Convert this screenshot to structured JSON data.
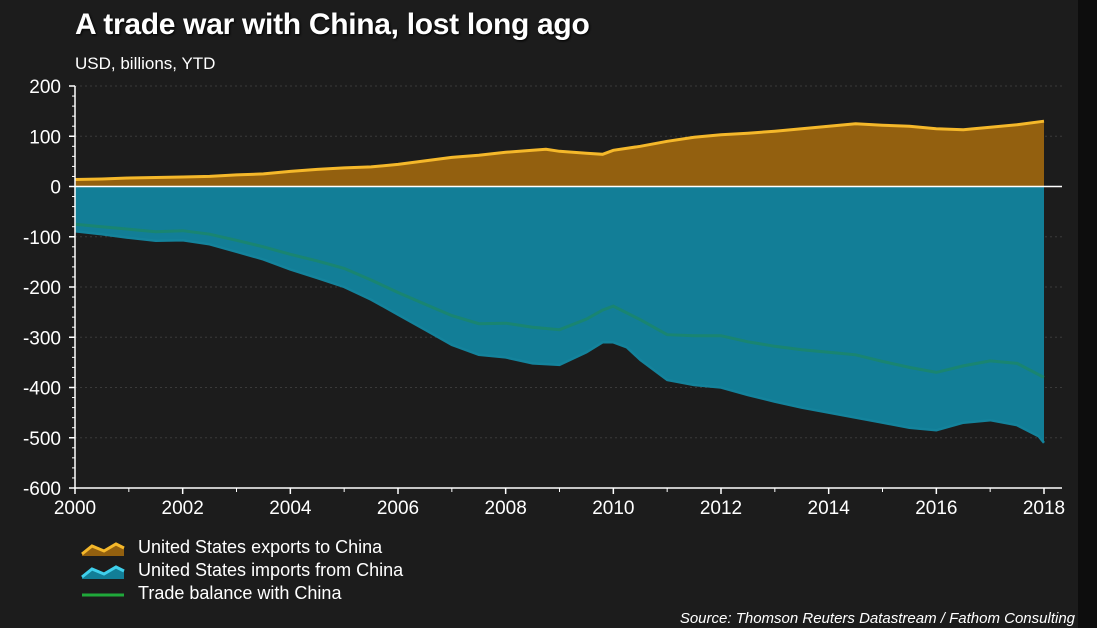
{
  "header": {
    "title": "A trade war with China, lost long ago",
    "subtitle": "USD, billions, YTD"
  },
  "source": "Source: Thomson Reuters Datastream / Fathom Consulting",
  "colors": {
    "background": "#1c1c1c",
    "exports_fill": "#93600f",
    "exports_line": "#f5b82a",
    "imports_fill": "#127e97",
    "imports_line": "#14839c",
    "balance_line": "#1f8a52",
    "axis": "#ffffff"
  },
  "chart_data": {
    "type": "area",
    "title": "A trade war with China, lost long ago",
    "subtitle": "USD, billions, YTD",
    "xlabel": "",
    "ylabel": "",
    "xlim": [
      2000,
      2018.1
    ],
    "ylim": [
      -600,
      200
    ],
    "grid": true,
    "legend_position": "bottom-left",
    "x_ticks": [
      2000,
      2002,
      2004,
      2006,
      2008,
      2010,
      2012,
      2014,
      2016,
      2018
    ],
    "y_ticks": [
      200,
      100,
      0,
      -100,
      -200,
      -300,
      -400,
      -500,
      -600
    ],
    "x_tick_labels": [
      "2000",
      "2002",
      "2004",
      "2006",
      "2008",
      "2010",
      "2012",
      "2014",
      "2016",
      "2018"
    ],
    "y_tick_labels": [
      "200",
      "100",
      "0",
      "-100",
      "-200",
      "-300",
      "-400",
      "-500",
      "-600"
    ],
    "series": [
      {
        "name": "United States exports to China",
        "x": [
          2000,
          2000.5,
          2001,
          2001.5,
          2002,
          2002.5,
          2003,
          2003.5,
          2004,
          2004.5,
          2005,
          2005.5,
          2006,
          2006.5,
          2007,
          2007.5,
          2008,
          2008.5,
          2008.75,
          2009,
          2009.5,
          2009.8,
          2010,
          2010.5,
          2011,
          2011.5,
          2012,
          2012.5,
          2013,
          2013.5,
          2014,
          2014.5,
          2015,
          2015.5,
          2016,
          2016.5,
          2017,
          2017.5,
          2018
        ],
        "values": [
          14,
          15,
          17,
          18,
          19,
          20,
          23,
          25,
          30,
          34,
          37,
          39,
          44,
          51,
          58,
          62,
          68,
          72,
          74,
          70,
          66,
          64,
          72,
          80,
          90,
          98,
          103,
          106,
          110,
          115,
          120,
          125,
          122,
          120,
          115,
          113,
          118,
          123,
          130
        ]
      },
      {
        "name": "United States imports from China",
        "x": [
          2000,
          2000.5,
          2001,
          2001.5,
          2002,
          2002.5,
          2003,
          2003.5,
          2004,
          2004.5,
          2005,
          2005.5,
          2006,
          2006.5,
          2007,
          2007.5,
          2008,
          2008.5,
          2009,
          2009.5,
          2009.8,
          2010,
          2010.25,
          2010.5,
          2011,
          2011.5,
          2012,
          2012.5,
          2013,
          2013.5,
          2014,
          2014.5,
          2015,
          2015.5,
          2016,
          2016.5,
          2017,
          2017.5,
          2017.9,
          2018
        ],
        "values": [
          -89,
          -95,
          -102,
          -108,
          -107,
          -115,
          -130,
          -145,
          -165,
          -182,
          -200,
          -225,
          -255,
          -285,
          -315,
          -335,
          -340,
          -352,
          -355,
          -330,
          -310,
          -310,
          -320,
          -345,
          -385,
          -395,
          -400,
          -415,
          -428,
          -440,
          -450,
          -460,
          -470,
          -480,
          -485,
          -470,
          -465,
          -475,
          -497,
          -510
        ]
      },
      {
        "name": "Trade balance with China",
        "x": [
          2000,
          2000.5,
          2001,
          2001.5,
          2002,
          2002.5,
          2003,
          2003.5,
          2004,
          2004.5,
          2005,
          2005.5,
          2006,
          2006.5,
          2007,
          2007.5,
          2008,
          2008.5,
          2009,
          2009.5,
          2009.8,
          2010,
          2010.5,
          2011,
          2011.5,
          2012,
          2012.5,
          2013,
          2013.5,
          2014,
          2014.5,
          2015,
          2015.5,
          2016,
          2016.5,
          2017,
          2017.5,
          2018
        ],
        "values": [
          -75,
          -80,
          -85,
          -90,
          -88,
          -95,
          -107,
          -120,
          -135,
          -148,
          -163,
          -186,
          -211,
          -234,
          -257,
          -273,
          -272,
          -280,
          -285,
          -264,
          -246,
          -238,
          -265,
          -295,
          -297,
          -297,
          -309,
          -318,
          -325,
          -330,
          -335,
          -348,
          -360,
          -370,
          -357,
          -347,
          -352,
          -380
        ]
      }
    ]
  },
  "legend": {
    "items": [
      {
        "label": "United States exports to China"
      },
      {
        "label": "United States imports from China"
      },
      {
        "label": "Trade balance with China"
      }
    ]
  }
}
